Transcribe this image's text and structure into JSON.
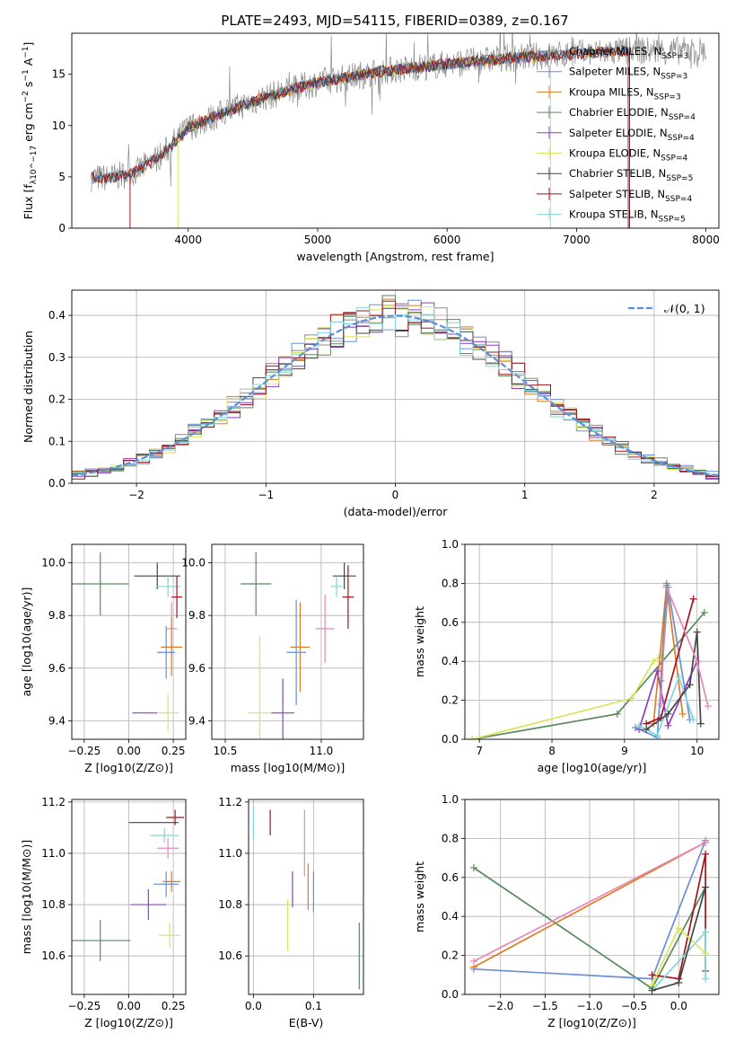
{
  "figure": {
    "title": "PLATE=2493, MJD=54115, FIBERID=0389, z=0.167"
  },
  "colors": {
    "chabrier_miles": "#8c8c8c",
    "salpeter_miles": "#6a8fd8",
    "kroupa_miles": "#e07b23",
    "chabrier_elodie": "#5a8a5e",
    "salpeter_elodie": "#8e3fbf",
    "kroupa_elodie": "#d8e55a",
    "chabrier_stelib": "#444444",
    "salpeter_stelib": "#a0141e",
    "kroupa_stelib": "#7fd6dc",
    "pink": "#e58ab8",
    "gauss": "#5b8fd6",
    "grid": "#b0b0b0"
  },
  "chart_data": [
    {
      "id": "spectrum",
      "type": "line",
      "xlabel": "wavelength [Angstrom, rest frame]",
      "ylabel": "Flux [f_λ10^−17 erg cm^−2 s^−1 A^−1]",
      "xlim": [
        3100,
        8100
      ],
      "ylim": [
        0,
        19
      ],
      "xticks": [
        4000,
        5000,
        6000,
        7000,
        8000
      ],
      "yticks": [
        0,
        5,
        10,
        15
      ],
      "grid": false,
      "legend_position": "right",
      "legend": [
        {
          "label": "Chabrier MILES, N_SSP=3",
          "color": "chabrier_miles"
        },
        {
          "label": "Salpeter MILES, N_SSP=3",
          "color": "salpeter_miles"
        },
        {
          "label": "Kroupa MILES, N_SSP=3",
          "color": "kroupa_miles"
        },
        {
          "label": "Chabrier ELODIE, N_SSP=4",
          "color": "chabrier_elodie"
        },
        {
          "label": "Salpeter ELODIE, N_SSP=4",
          "color": "salpeter_elodie"
        },
        {
          "label": "Kroupa ELODIE, N_SSP=4",
          "color": "kroupa_elodie"
        },
        {
          "label": "Chabrier STELIB, N_SSP=5",
          "color": "chabrier_stelib"
        },
        {
          "label": "Salpeter STELIB, N_SSP=4",
          "color": "salpeter_stelib"
        },
        {
          "label": "Kroupa STELIB, N_SSP=5",
          "color": "kroupa_stelib"
        }
      ],
      "continuum": {
        "x": [
          3250,
          3400,
          3600,
          3800,
          4000,
          4300,
          4600,
          5000,
          5500,
          6000,
          6500,
          7000,
          7400
        ],
        "y": [
          4.9,
          4.9,
          5.5,
          7.2,
          9.8,
          11.4,
          12.8,
          14.2,
          15.3,
          16.0,
          16.6,
          17.0,
          17.3
        ]
      }
    },
    {
      "id": "residuals",
      "type": "line",
      "xlabel": "(data-model)/error",
      "ylabel": "Normed distribution",
      "xlim": [
        -2.5,
        2.5
      ],
      "ylim": [
        0,
        0.46
      ],
      "xticks": [
        -2,
        -1,
        0,
        1,
        2
      ],
      "yticks": [
        0.0,
        0.1,
        0.2,
        0.3,
        0.4
      ],
      "grid": true,
      "legend_position": "top-right",
      "legend": [
        {
          "label": "𝒩(0, 1)",
          "color": "gauss"
        }
      ]
    },
    {
      "id": "age_vs_z",
      "type": "scatter",
      "xlabel": "Z [log10(Z/Z⊙)]",
      "ylabel": "age [log10(age/yr)]",
      "xlim": [
        -0.32,
        0.32
      ],
      "ylim": [
        9.33,
        10.07
      ],
      "xticks": [
        -0.25,
        0.0,
        0.25
      ],
      "yticks": [
        9.4,
        9.6,
        9.8,
        10.0
      ],
      "grid": true,
      "points": [
        {
          "color": "chabrier_elodie",
          "x": -0.16,
          "y": 9.92,
          "xerr": 0.16,
          "yerr": 0.12
        },
        {
          "color": "chabrier_stelib",
          "x": 0.16,
          "y": 9.95,
          "xerr": 0.13,
          "yerr": 0.05
        },
        {
          "color": "kroupa_stelib",
          "x": 0.22,
          "y": 9.91,
          "xerr": 0.07,
          "yerr": 0.04
        },
        {
          "color": "salpeter_stelib",
          "x": 0.27,
          "y": 9.87,
          "xerr": 0.03,
          "yerr": 0.08
        },
        {
          "color": "pink",
          "x": 0.24,
          "y": 9.75,
          "xerr": 0.03,
          "yerr": 0.1
        },
        {
          "color": "kroupa_miles",
          "x": 0.24,
          "y": 9.68,
          "xerr": 0.06,
          "yerr": 0.11
        },
        {
          "color": "salpeter_miles",
          "x": 0.21,
          "y": 9.66,
          "xerr": 0.05,
          "yerr": 0.1
        },
        {
          "color": "salpeter_elodie",
          "x": 0.09,
          "y": 9.43,
          "xerr": 0.07,
          "yerr": 0.0
        },
        {
          "color": "kroupa_elodie",
          "x": 0.22,
          "y": 9.43,
          "xerr": 0.06,
          "yerr": 0.07
        }
      ]
    },
    {
      "id": "age_vs_mass",
      "type": "scatter",
      "xlabel": "mass [log10(M/M⊙)]",
      "ylabel": "",
      "xlim": [
        10.43,
        11.22
      ],
      "ylim": [
        9.33,
        10.07
      ],
      "xticks": [
        10.5,
        11.0
      ],
      "yticks": [
        9.4,
        9.6,
        9.8,
        10.0
      ],
      "grid": true,
      "points": [
        {
          "color": "chabrier_elodie",
          "x": 10.66,
          "y": 9.92,
          "xerr": 0.08,
          "yerr": 0.12
        },
        {
          "color": "chabrier_stelib",
          "x": 11.12,
          "y": 9.95,
          "xerr": 0.06,
          "yerr": 0.05
        },
        {
          "color": "kroupa_stelib",
          "x": 11.08,
          "y": 9.91,
          "xerr": 0.03,
          "yerr": 0.04
        },
        {
          "color": "salpeter_stelib",
          "x": 11.14,
          "y": 9.87,
          "xerr": 0.03,
          "yerr": 0.12
        },
        {
          "color": "pink",
          "x": 11.02,
          "y": 9.75,
          "xerr": 0.05,
          "yerr": 0.13
        },
        {
          "color": "kroupa_miles",
          "x": 10.89,
          "y": 9.68,
          "xerr": 0.05,
          "yerr": 0.17
        },
        {
          "color": "salpeter_miles",
          "x": 10.87,
          "y": 9.66,
          "xerr": 0.05,
          "yerr": 0.2
        },
        {
          "color": "salpeter_elodie",
          "x": 10.8,
          "y": 9.43,
          "xerr": 0.06,
          "yerr": 0.13
        },
        {
          "color": "kroupa_elodie",
          "x": 10.68,
          "y": 9.43,
          "xerr": 0.06,
          "yerr": 0.29
        }
      ]
    },
    {
      "id": "weight_vs_age",
      "type": "line",
      "xlabel": "age [log10(age/yr)]",
      "ylabel": "mass weight",
      "xlim": [
        6.8,
        10.3
      ],
      "ylim": [
        0,
        1.0
      ],
      "xticks": [
        7,
        8,
        9,
        10
      ],
      "yticks": [
        0.0,
        0.2,
        0.4,
        0.6,
        0.8,
        1.0
      ],
      "grid": true,
      "series": [
        {
          "color": "chabrier_elodie",
          "x": [
            6.9,
            8.9,
            10.1
          ],
          "y": [
            0.0,
            0.13,
            0.65
          ]
        },
        {
          "color": "kroupa_elodie",
          "x": [
            6.9,
            9.1,
            9.4,
            9.5
          ],
          "y": [
            0.0,
            0.21,
            0.4,
            0.43
          ]
        },
        {
          "color": "kroupa_miles",
          "x": [
            9.4,
            9.58,
            9.8
          ],
          "y": [
            0.08,
            0.79,
            0.13
          ]
        },
        {
          "color": "salpeter_miles",
          "x": [
            9.15,
            9.45,
            9.6,
            9.9
          ],
          "y": [
            0.06,
            0.01,
            0.78,
            0.1
          ]
        },
        {
          "color": "salpeter_stelib",
          "x": [
            9.3,
            9.5,
            9.95
          ],
          "y": [
            0.08,
            0.11,
            0.72
          ]
        },
        {
          "color": "salpeter_elodie",
          "x": [
            9.2,
            9.45,
            9.6,
            10.0
          ],
          "y": [
            0.05,
            0.35,
            0.07,
            0.4
          ]
        },
        {
          "color": "kroupa_stelib",
          "x": [
            9.2,
            9.45,
            9.75,
            9.95
          ],
          "y": [
            0.07,
            0.02,
            0.32,
            0.1
          ]
        },
        {
          "color": "chabrier_stelib",
          "x": [
            9.3,
            9.6,
            9.9,
            10.0,
            10.05
          ],
          "y": [
            0.05,
            0.13,
            0.28,
            0.55,
            0.08
          ]
        },
        {
          "color": "pink",
          "x": [
            9.5,
            9.58,
            10.0,
            10.15
          ],
          "y": [
            0.18,
            0.78,
            0.4,
            0.17
          ]
        },
        {
          "color": "chabrier_miles",
          "x": [
            9.5,
            9.58
          ],
          "y": [
            0.3,
            0.8
          ]
        }
      ]
    },
    {
      "id": "mass_vs_z",
      "type": "scatter",
      "xlabel": "Z [log10(Z/Z⊙)]",
      "ylabel": "mass [log10(M/M⊙)]",
      "xlim": [
        -0.32,
        0.32
      ],
      "ylim": [
        10.45,
        11.21
      ],
      "xticks": [
        -0.25,
        0.0,
        0.25
      ],
      "yticks": [
        10.6,
        10.8,
        11.0,
        11.2
      ],
      "grid": true,
      "points": [
        {
          "color": "chabrier_elodie",
          "x": -0.16,
          "y": 10.66,
          "xerr": 0.17,
          "yerr": 0.08
        },
        {
          "color": "chabrier_stelib",
          "x": 0.14,
          "y": 11.12,
          "xerr": 0.14,
          "yerr": 0.0
        },
        {
          "color": "salpeter_stelib",
          "x": 0.26,
          "y": 11.14,
          "xerr": 0.05,
          "yerr": 0.03
        },
        {
          "color": "kroupa_stelib",
          "x": 0.2,
          "y": 11.07,
          "xerr": 0.08,
          "yerr": 0.03
        },
        {
          "color": "pink",
          "x": 0.22,
          "y": 11.02,
          "xerr": 0.06,
          "yerr": 0.04
        },
        {
          "color": "kroupa_miles",
          "x": 0.24,
          "y": 10.89,
          "xerr": 0.05,
          "yerr": 0.04
        },
        {
          "color": "salpeter_miles",
          "x": 0.21,
          "y": 10.88,
          "xerr": 0.07,
          "yerr": 0.05
        },
        {
          "color": "salpeter_elodie",
          "x": 0.11,
          "y": 10.8,
          "xerr": 0.1,
          "yerr": 0.06
        },
        {
          "color": "kroupa_elodie",
          "x": 0.23,
          "y": 10.68,
          "xerr": 0.06,
          "yerr": 0.05
        }
      ]
    },
    {
      "id": "mass_vs_ebv",
      "type": "scatter",
      "xlabel": "E(B-V)",
      "ylabel": "",
      "xlim": [
        -0.008,
        0.183
      ],
      "ylim": [
        10.45,
        11.21
      ],
      "xticks": [
        0.0,
        0.1
      ],
      "yticks": [
        10.6,
        10.8,
        11.0,
        11.2
      ],
      "grid": true,
      "points": [
        {
          "color": "kroupa_stelib",
          "x": 0.0,
          "y": 11.12,
          "xerr": 0.0,
          "yerr": 0.06
        },
        {
          "color": "salpeter_stelib",
          "x": 0.028,
          "y": 11.12,
          "xerr": 0.0,
          "yerr": 0.05
        },
        {
          "color": "pink",
          "x": 0.085,
          "y": 11.04,
          "xerr": 0.0,
          "yerr": 0.13
        },
        {
          "color": "salpeter_elodie",
          "x": 0.065,
          "y": 10.86,
          "xerr": 0.0,
          "yerr": 0.07
        },
        {
          "color": "kroupa_miles",
          "x": 0.091,
          "y": 10.87,
          "xerr": 0.0,
          "yerr": 0.09
        },
        {
          "color": "salpeter_miles",
          "x": 0.1,
          "y": 10.85,
          "xerr": 0.0,
          "yerr": 0.08
        },
        {
          "color": "kroupa_elodie",
          "x": 0.057,
          "y": 10.72,
          "xerr": 0.0,
          "yerr": 0.1
        },
        {
          "color": "chabrier_elodie",
          "x": 0.176,
          "y": 10.6,
          "xerr": 0.0,
          "yerr": 0.13
        }
      ]
    },
    {
      "id": "weight_vs_z",
      "type": "line",
      "xlabel": "Z [log10(Z/Z⊙)]",
      "ylabel": "mass weight",
      "xlim": [
        -2.4,
        0.45
      ],
      "ylim": [
        0,
        1.0
      ],
      "xticks": [
        -2.0,
        -1.5,
        -1.0,
        -0.5,
        0.0
      ],
      "yticks": [
        0.0,
        0.2,
        0.4,
        0.6,
        0.8,
        1.0
      ],
      "grid": true,
      "series": [
        {
          "color": "chabrier_elodie",
          "x": [
            -2.3,
            -0.3,
            0.3
          ],
          "y": [
            0.65,
            0.03,
            0.55
          ]
        },
        {
          "color": "salpeter_miles",
          "x": [
            -2.3,
            -0.3,
            0.3
          ],
          "y": [
            0.13,
            0.08,
            0.79
          ]
        },
        {
          "color": "kroupa_miles",
          "x": [
            -2.3,
            0.3
          ],
          "y": [
            0.14,
            0.78
          ]
        },
        {
          "color": "pink",
          "x": [
            -2.3,
            0.3
          ],
          "y": [
            0.17,
            0.78
          ]
        },
        {
          "color": "salpeter_stelib",
          "x": [
            -0.3,
            0.0,
            0.3,
            0.3
          ],
          "y": [
            0.1,
            0.08,
            0.72,
            0.12
          ]
        },
        {
          "color": "kroupa_stelib",
          "x": [
            -0.3,
            0.3,
            0.3
          ],
          "y": [
            0.02,
            0.32,
            0.08
          ]
        },
        {
          "color": "kroupa_elodie",
          "x": [
            -0.3,
            0.0,
            0.3
          ],
          "y": [
            0.05,
            0.34,
            0.21
          ]
        },
        {
          "color": "chabrier_stelib",
          "x": [
            -0.3,
            0.0,
            0.3
          ],
          "y": [
            0.02,
            0.06,
            0.55
          ]
        }
      ]
    }
  ]
}
